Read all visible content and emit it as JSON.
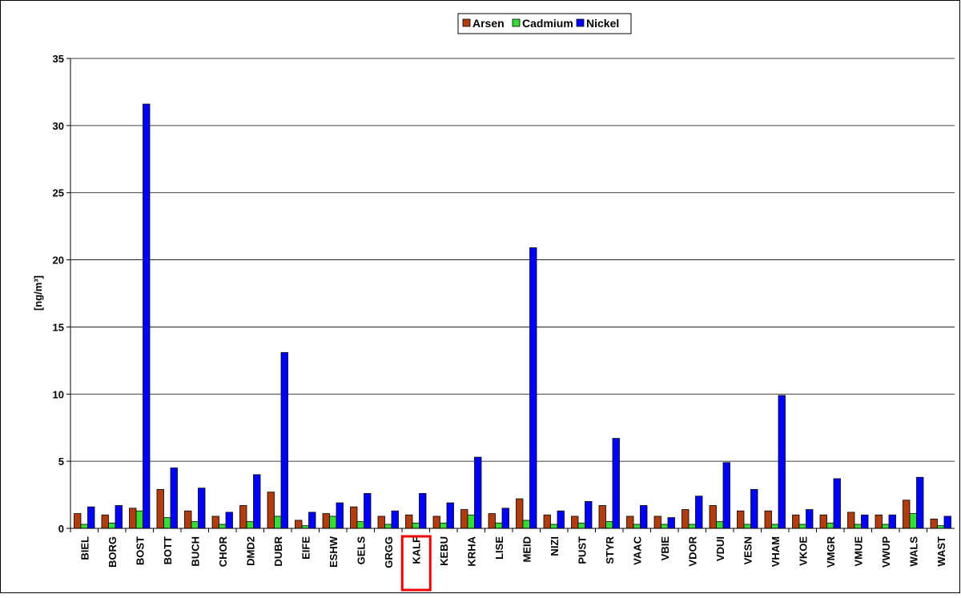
{
  "chart_data": {
    "type": "bar",
    "y_label": "[ng/m³]",
    "categories": [
      "BIEL",
      "BORG",
      "BOST",
      "BOTT",
      "BUCH",
      "CHOR",
      "DMD2",
      "DUBR",
      "EIFE",
      "ESHW",
      "GELS",
      "GRGG",
      "KALF",
      "KEBU",
      "KRHA",
      "LISE",
      "MEID",
      "NIZI",
      "PUST",
      "STYR",
      "VAAC",
      "VBIE",
      "VDOR",
      "VDUI",
      "VESN",
      "VHAM",
      "VKOE",
      "VMGR",
      "VMUE",
      "VWUP",
      "WALS",
      "WAST"
    ],
    "series": [
      {
        "name": "Arsen",
        "color": "#b23c0e",
        "values": [
          1.1,
          1.0,
          1.5,
          2.9,
          1.3,
          0.9,
          1.7,
          2.7,
          0.6,
          1.1,
          1.6,
          0.9,
          1.0,
          0.9,
          1.4,
          1.1,
          2.2,
          1.0,
          0.9,
          1.7,
          0.9,
          0.9,
          1.4,
          1.7,
          1.3,
          1.3,
          1.0,
          1.0,
          1.2,
          1.0,
          2.1,
          0.7
        ]
      },
      {
        "name": "Cadmium",
        "color": "#33dd33",
        "values": [
          0.3,
          0.4,
          1.3,
          0.8,
          0.5,
          0.3,
          0.5,
          0.9,
          0.2,
          0.9,
          0.5,
          0.3,
          0.4,
          0.4,
          1.0,
          0.4,
          0.6,
          0.3,
          0.4,
          0.5,
          0.3,
          0.3,
          0.3,
          0.5,
          0.3,
          0.3,
          0.3,
          0.4,
          0.3,
          0.3,
          1.1,
          0.2
        ]
      },
      {
        "name": "Nickel",
        "color": "#0000ff",
        "values": [
          1.6,
          1.7,
          31.6,
          4.5,
          3.0,
          1.2,
          4.0,
          13.1,
          1.2,
          1.9,
          2.6,
          1.3,
          2.6,
          1.9,
          5.3,
          1.5,
          20.9,
          1.3,
          2.0,
          6.7,
          1.7,
          0.8,
          2.4,
          4.9,
          2.9,
          9.9,
          1.4,
          3.7,
          1.0,
          1.0,
          3.8,
          0.9
        ]
      }
    ],
    "ylim": [
      0,
      35
    ],
    "yticks": [
      0,
      5,
      10,
      15,
      20,
      25,
      30,
      35
    ],
    "grid": true,
    "legend": "top",
    "highlight": "KALF"
  }
}
